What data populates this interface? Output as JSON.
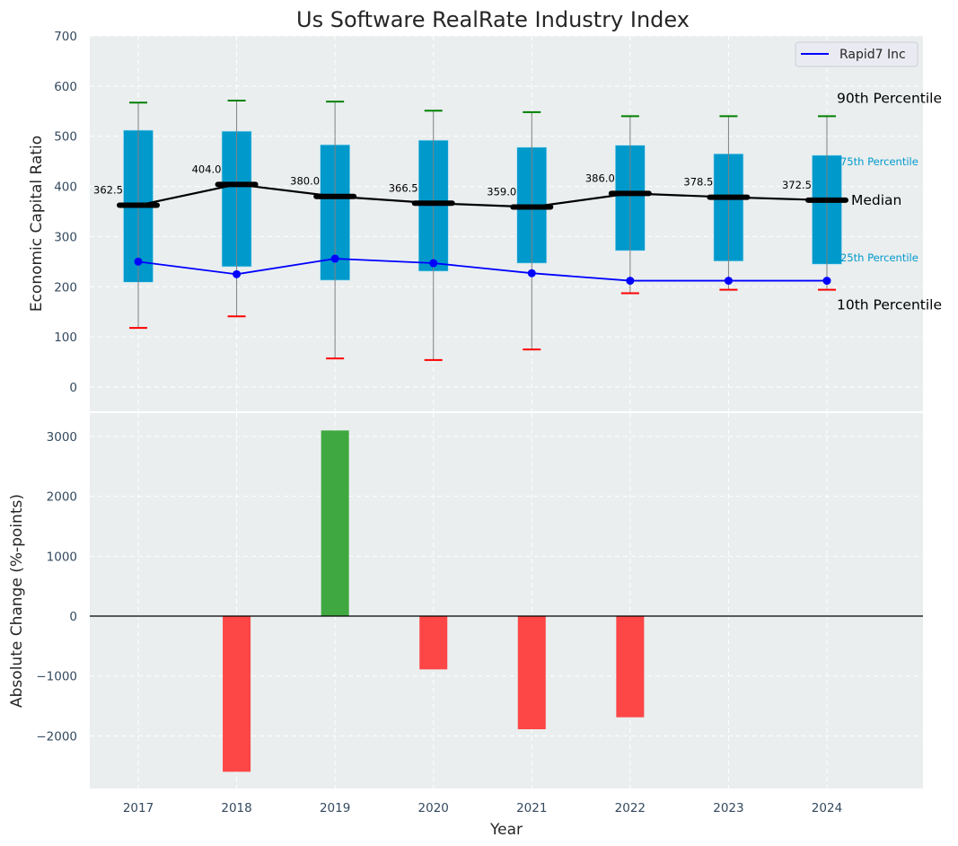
{
  "chart_data": [
    {
      "type": "bar",
      "subtype": "percentile-box",
      "title": "Us Software RealRate Industry Index",
      "xlabel": "",
      "ylabel": "Economic Capital Ratio",
      "ylim": [
        -50,
        700
      ],
      "yticks": [
        0,
        100,
        200,
        300,
        400,
        500,
        600,
        700
      ],
      "grid": true,
      "categories": [
        "2017",
        "2018",
        "2019",
        "2020",
        "2021",
        "2022",
        "2023",
        "2024"
      ],
      "series": [
        {
          "name": "90th Percentile",
          "values": [
            567,
            571,
            569,
            551,
            548,
            540,
            540,
            540
          ]
        },
        {
          "name": "75th Percentile",
          "values": [
            512,
            510,
            483,
            492,
            478,
            482,
            465,
            462
          ]
        },
        {
          "name": "Median",
          "values": [
            362.5,
            404.0,
            380.0,
            366.5,
            359.0,
            386.0,
            378.5,
            372.5
          ]
        },
        {
          "name": "25th Percentile",
          "values": [
            209,
            240,
            213,
            231,
            247,
            272,
            251,
            245
          ]
        },
        {
          "name": "10th Percentile",
          "values": [
            118,
            141,
            57,
            54,
            75,
            187,
            194,
            194
          ]
        },
        {
          "name": "Rapid7 Inc",
          "values": [
            250,
            225,
            256,
            247,
            227,
            212,
            212,
            212
          ]
        }
      ],
      "median_labels": [
        "362.5",
        "404.0",
        "380.0",
        "366.5",
        "359.0",
        "386.0",
        "378.5",
        "372.5"
      ],
      "annotations": {
        "p90": "90th Percentile",
        "p75": "75th Percentile",
        "median": "Median",
        "p25": "25th Percentile",
        "p10": "10th Percentile"
      },
      "legend": {
        "position": "top-right",
        "entries": [
          "Rapid7 Inc"
        ]
      },
      "colors": {
        "box": "#0099cc",
        "median": "#000000",
        "p90": "#008000",
        "p10": "#ff0000",
        "company": "#0000ff",
        "whisker": "#808080",
        "background": "#eaeeef"
      }
    },
    {
      "type": "bar",
      "title": "",
      "xlabel": "Year",
      "ylabel": "Absolute Change (%-points)",
      "ylim": [
        -2880,
        3400
      ],
      "yticks": [
        -2000,
        -1000,
        0,
        1000,
        2000,
        3000
      ],
      "ytick_labels": [
        "−2000",
        "−1000",
        "0",
        "1000",
        "2000",
        "3000"
      ],
      "grid": true,
      "categories": [
        "2017",
        "2018",
        "2019",
        "2020",
        "2021",
        "2022",
        "2023",
        "2024"
      ],
      "values": [
        0,
        -2600,
        3100,
        -890,
        -1890,
        -1690,
        0,
        0
      ],
      "colors": {
        "positive": "#2ca02c",
        "negative": "#ff3333",
        "zero_line": "#000000"
      }
    }
  ]
}
